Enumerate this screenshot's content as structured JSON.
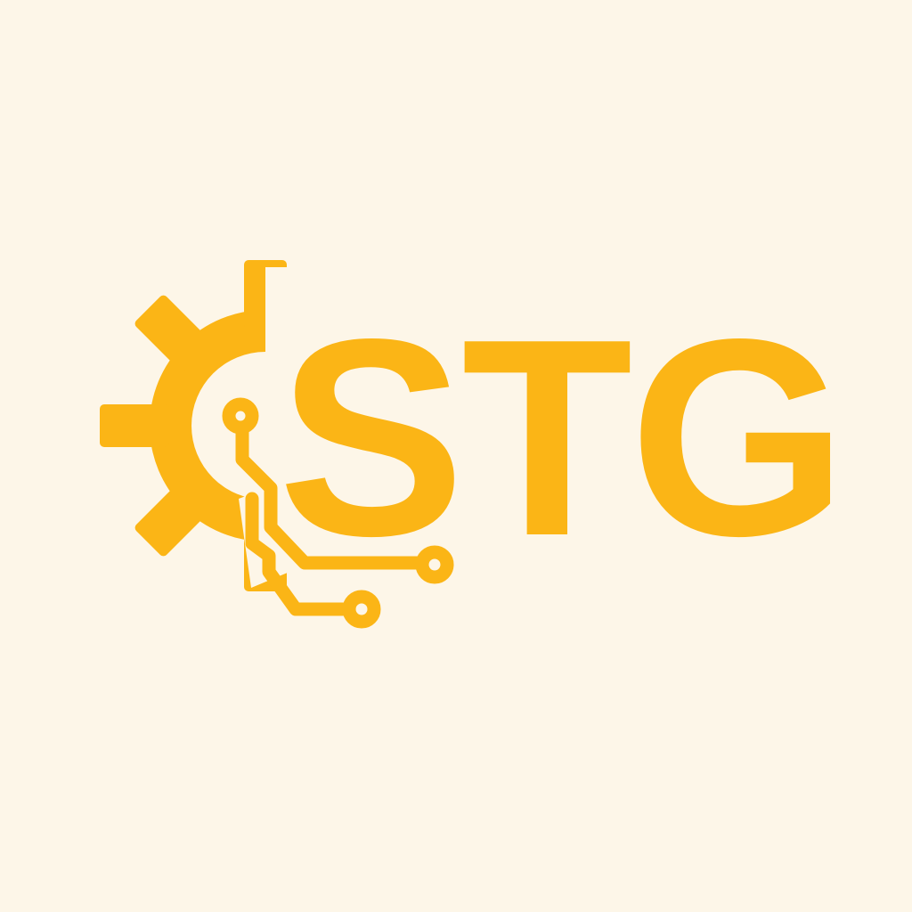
{
  "colors": {
    "background": "#FDF6E8",
    "brand": "#FBB516"
  },
  "logo": {
    "wordmark": "STG",
    "mark_icon": "gear-circuit-icon"
  }
}
